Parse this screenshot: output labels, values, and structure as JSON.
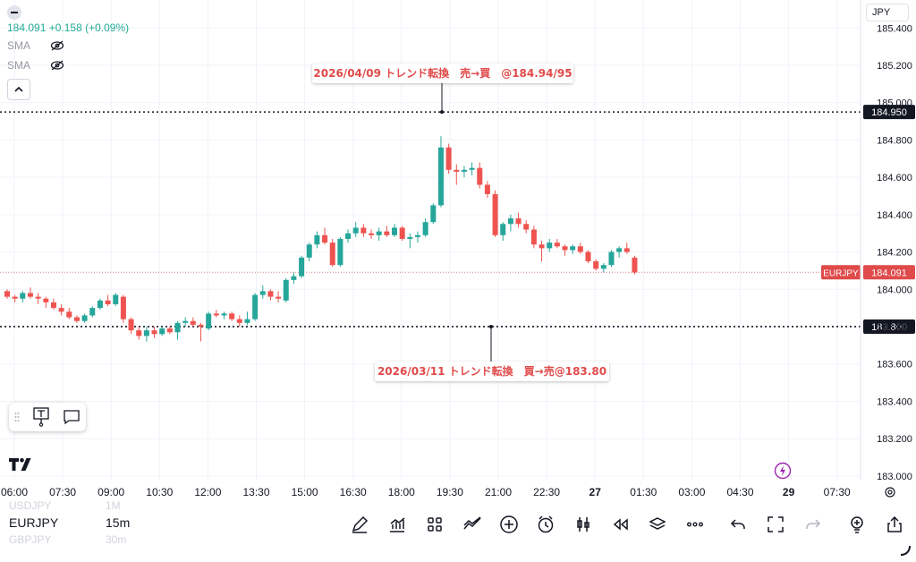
{
  "chart_data": {
    "type": "candlestick",
    "symbol": "EURJPY",
    "interval": "15m",
    "currency": "JPY",
    "last_price": "184.091",
    "change_text": "+0.158 (+0.09%)",
    "ylim": [
      182.98,
      185.55
    ],
    "y_ticks": [
      "185.400",
      "185.200",
      "185.000",
      "184.800",
      "184.600",
      "184.400",
      "184.200",
      "184.000",
      "183.800",
      "183.600",
      "183.400",
      "183.200",
      "183.000"
    ],
    "x_ticks": [
      "06:00",
      "07:30",
      "09:00",
      "10:30",
      "12:00",
      "13:30",
      "15:00",
      "16:30",
      "18:00",
      "19:30",
      "21:00",
      "22:30",
      "27",
      "01:30",
      "03:00",
      "04:30",
      "29",
      "07:30"
    ],
    "levels": [
      {
        "price": 184.95,
        "label": "184.950"
      },
      {
        "price": 183.8,
        "label": "183.800"
      }
    ],
    "annotations": [
      {
        "text": "2026/04/09  トレンド転換　売→買　@184.94/95",
        "price": 184.95
      },
      {
        "text": "2026/03/11 トレンド転換　買→売@183.80",
        "price": 183.8
      }
    ],
    "candles": [
      [
        183.99,
        184.0,
        183.95,
        183.96
      ],
      [
        183.96,
        183.97,
        183.93,
        183.95
      ],
      [
        183.95,
        183.99,
        183.93,
        183.98
      ],
      [
        183.98,
        184.01,
        183.95,
        183.96
      ],
      [
        183.96,
        183.98,
        183.92,
        183.95
      ],
      [
        183.95,
        183.96,
        183.9,
        183.93
      ],
      [
        183.93,
        183.95,
        183.89,
        183.9
      ],
      [
        183.9,
        183.92,
        183.86,
        183.88
      ],
      [
        183.88,
        183.9,
        183.84,
        183.85
      ],
      [
        183.85,
        183.86,
        183.82,
        183.83
      ],
      [
        183.83,
        183.87,
        183.82,
        183.86
      ],
      [
        183.86,
        183.91,
        183.85,
        183.9
      ],
      [
        183.9,
        183.95,
        183.89,
        183.94
      ],
      [
        183.94,
        183.97,
        183.91,
        183.92
      ],
      [
        183.92,
        183.98,
        183.91,
        183.97
      ],
      [
        183.96,
        183.97,
        183.82,
        183.84
      ],
      [
        183.84,
        183.85,
        183.76,
        183.78
      ],
      [
        183.78,
        183.8,
        183.73,
        183.75
      ],
      [
        183.75,
        183.8,
        183.72,
        183.78
      ],
      [
        183.78,
        183.8,
        183.74,
        183.76
      ],
      [
        183.76,
        183.8,
        183.75,
        183.79
      ],
      [
        183.79,
        183.8,
        183.76,
        183.77
      ],
      [
        183.77,
        183.83,
        183.73,
        183.82
      ],
      [
        183.82,
        183.85,
        183.8,
        183.83
      ],
      [
        183.83,
        183.85,
        183.8,
        183.81
      ],
      [
        183.81,
        183.82,
        183.72,
        183.8
      ],
      [
        183.79,
        183.88,
        183.78,
        183.87
      ],
      [
        183.87,
        183.89,
        183.85,
        183.86
      ],
      [
        183.86,
        183.88,
        183.84,
        183.87
      ],
      [
        183.87,
        183.88,
        183.83,
        183.84
      ],
      [
        183.84,
        183.86,
        183.8,
        183.82
      ],
      [
        183.82,
        183.88,
        183.81,
        183.84
      ],
      [
        183.84,
        183.98,
        183.83,
        183.97
      ],
      [
        183.97,
        184.02,
        183.95,
        183.99
      ],
      [
        183.99,
        184.0,
        183.94,
        183.96
      ],
      [
        183.96,
        183.99,
        183.93,
        183.95
      ],
      [
        183.94,
        184.06,
        183.93,
        184.05
      ],
      [
        184.05,
        184.09,
        184.03,
        184.07
      ],
      [
        184.07,
        184.18,
        184.06,
        184.17
      ],
      [
        184.17,
        184.25,
        184.15,
        184.24
      ],
      [
        184.24,
        184.31,
        184.22,
        184.29
      ],
      [
        184.29,
        184.33,
        184.24,
        184.25
      ],
      [
        184.25,
        184.27,
        184.12,
        184.13
      ],
      [
        184.13,
        184.28,
        184.12,
        184.27
      ],
      [
        184.27,
        184.32,
        184.25,
        184.3
      ],
      [
        184.3,
        184.36,
        184.28,
        184.33
      ],
      [
        184.33,
        184.35,
        184.28,
        184.3
      ],
      [
        184.3,
        184.32,
        184.27,
        184.29
      ],
      [
        184.29,
        184.33,
        184.26,
        184.31
      ],
      [
        184.31,
        184.34,
        184.28,
        184.29
      ],
      [
        184.29,
        184.35,
        184.28,
        184.33
      ],
      [
        184.33,
        184.34,
        184.26,
        184.27
      ],
      [
        184.27,
        184.3,
        184.22,
        184.28
      ],
      [
        184.28,
        184.31,
        184.25,
        184.29
      ],
      [
        184.29,
        184.38,
        184.28,
        184.36
      ],
      [
        184.36,
        184.46,
        184.35,
        184.45
      ],
      [
        184.45,
        184.82,
        184.44,
        184.76
      ],
      [
        184.76,
        184.78,
        184.62,
        184.64
      ],
      [
        184.64,
        184.67,
        184.56,
        184.63
      ],
      [
        184.63,
        184.66,
        184.6,
        184.64
      ],
      [
        184.64,
        184.68,
        184.61,
        184.65
      ],
      [
        184.65,
        184.68,
        184.54,
        184.56
      ],
      [
        184.56,
        184.58,
        184.49,
        184.51
      ],
      [
        184.51,
        184.53,
        184.28,
        184.29
      ],
      [
        184.29,
        184.36,
        184.26,
        184.35
      ],
      [
        184.35,
        184.4,
        184.31,
        184.38
      ],
      [
        184.38,
        184.41,
        184.33,
        184.35
      ],
      [
        184.35,
        184.37,
        184.3,
        184.32
      ],
      [
        184.32,
        184.34,
        184.22,
        184.24
      ],
      [
        184.24,
        184.26,
        184.15,
        184.22
      ],
      [
        184.22,
        184.27,
        184.2,
        184.25
      ],
      [
        184.25,
        184.27,
        184.22,
        184.23
      ],
      [
        184.23,
        184.24,
        184.18,
        184.21
      ],
      [
        184.21,
        184.24,
        184.19,
        184.23
      ],
      [
        184.23,
        184.25,
        184.19,
        184.2
      ],
      [
        184.2,
        184.21,
        184.14,
        184.15
      ],
      [
        184.15,
        184.16,
        184.1,
        184.11
      ],
      [
        184.11,
        184.14,
        184.09,
        184.13
      ],
      [
        184.13,
        184.21,
        184.12,
        184.2
      ],
      [
        184.2,
        184.23,
        184.17,
        184.22
      ],
      [
        184.22,
        184.25,
        184.19,
        184.2
      ],
      [
        184.17,
        184.18,
        184.08,
        184.09
      ]
    ]
  },
  "top": {
    "indicators": [
      "SMA",
      "SMA"
    ],
    "price_tag_symbol": "EURJPY"
  },
  "bottom": {
    "symbol": "EURJPY",
    "interval": "15m",
    "ghost_above": [
      "USDJPY",
      "1M"
    ],
    "ghost_below": [
      "GBPJPY",
      "30m"
    ]
  },
  "icons": [
    "pen-icon",
    "indicators-icon",
    "templates-icon",
    "compare-icon",
    "add-icon",
    "alert-icon",
    "candles-icon",
    "replay-icon",
    "layers-icon",
    "more-icon",
    "undo-icon",
    "fullscreen-icon",
    "redo-icon",
    "ideas-icon",
    "share-icon"
  ]
}
